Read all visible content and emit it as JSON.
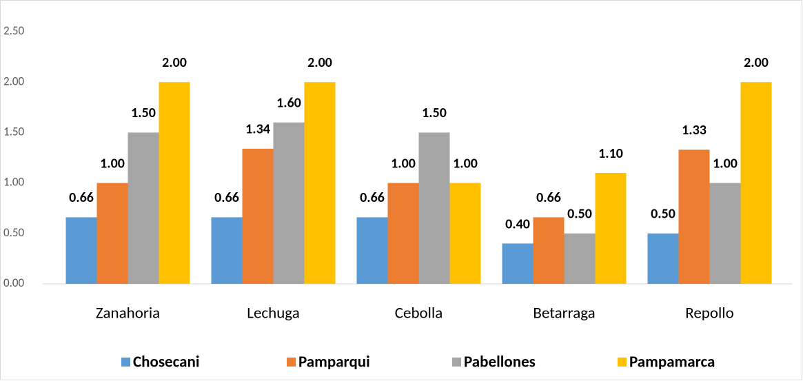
{
  "chart_data": {
    "type": "bar",
    "categories": [
      "Zanahoria",
      "Lechuga",
      "Cebolla",
      "Betarraga",
      "Repollo"
    ],
    "series": [
      {
        "name": "Chosecani",
        "color": "#5b9bd5",
        "values": [
          0.66,
          0.66,
          0.66,
          0.4,
          0.5
        ],
        "value_labels": [
          "0.66",
          "0.66",
          "0.66",
          "0.40",
          "0.50"
        ]
      },
      {
        "name": "Pamparqui",
        "color": "#ed7d31",
        "values": [
          1,
          1.34,
          1,
          0.66,
          1.33
        ],
        "value_labels": [
          "1.00",
          "1.34",
          "1.00",
          "0.66",
          "1.33"
        ]
      },
      {
        "name": "Pabellones",
        "color": "#a5a5a5",
        "values": [
          1.5,
          1.6,
          1.5,
          0.5,
          1
        ],
        "value_labels": [
          "1.50",
          "1.60",
          "1.50",
          "0.50",
          "1.00"
        ]
      },
      {
        "name": "Pampamarca",
        "color": "#ffc000",
        "values": [
          2,
          2,
          1,
          1.1,
          2
        ],
        "value_labels": [
          "2.00",
          "2.00",
          "1.00",
          "1.10",
          "2.00"
        ]
      }
    ],
    "ylim": [
      0,
      2.5
    ],
    "yticks": [
      {
        "value": 0,
        "label": "0.00"
      },
      {
        "value": 0.5,
        "label": "0.50"
      },
      {
        "value": 1,
        "label": "1.00"
      },
      {
        "value": 1.5,
        "label": "1.50"
      },
      {
        "value": 2,
        "label": "2.00"
      },
      {
        "value": 2.5,
        "label": "2.50"
      }
    ],
    "grid": false,
    "legend": "bottom"
  }
}
